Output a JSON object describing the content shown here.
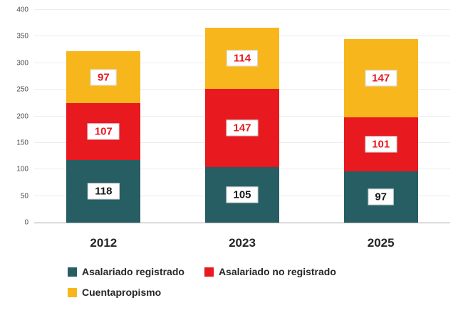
{
  "chart_data": {
    "type": "bar",
    "variant": "stacked-column",
    "title": "",
    "xlabel": "",
    "ylabel": "",
    "categories": [
      "2012",
      "2023",
      "2025"
    ],
    "series": [
      {
        "name": "Asalariado registrado",
        "color": "#265e63",
        "label_color": "#1a1a1a",
        "values": [
          118,
          105,
          97
        ]
      },
      {
        "name": "Asalariado no registrado",
        "color": "#e8191f",
        "label_color": "#e8191f",
        "values": [
          107,
          147,
          101
        ]
      },
      {
        "name": "Cuentapropismo",
        "color": "#f7b71c",
        "label_color": "#e8191f",
        "values": [
          97,
          114,
          147
        ]
      }
    ],
    "totals": [
      322,
      366,
      345
    ],
    "ylim": [
      0,
      400
    ],
    "yticks": [
      0,
      50,
      100,
      150,
      200,
      250,
      300,
      350,
      400
    ],
    "grid": true,
    "legend_position": "bottom-left"
  }
}
